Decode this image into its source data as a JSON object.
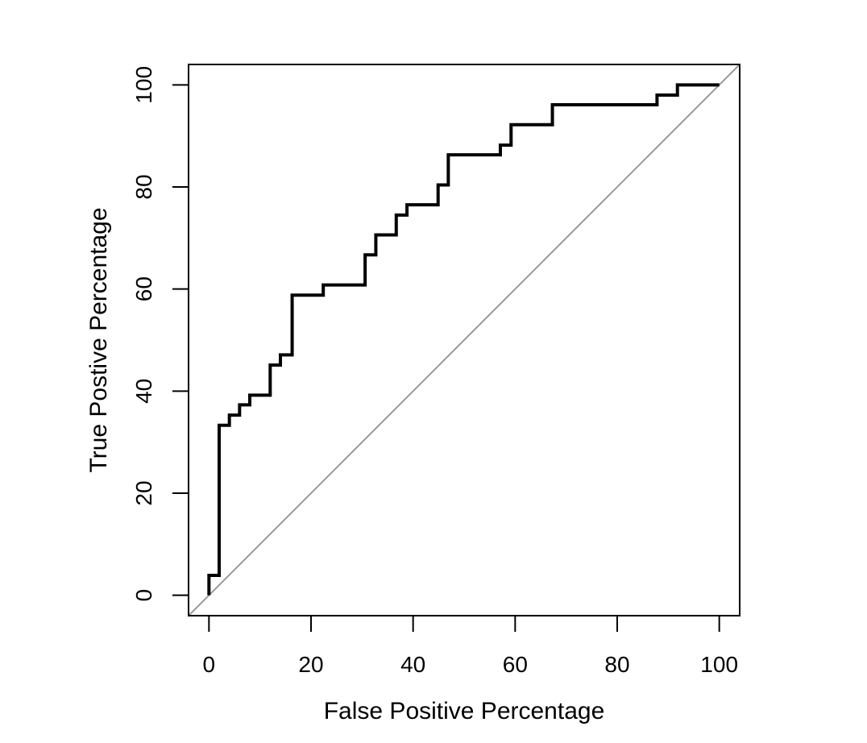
{
  "chart_data": {
    "type": "line",
    "title": "",
    "xlabel": "False Positive Percentage",
    "ylabel": "True Postive Percentage",
    "xlim": [
      -4,
      104
    ],
    "ylim": [
      -4,
      104
    ],
    "xticks": [
      0,
      20,
      40,
      60,
      80,
      100
    ],
    "yticks": [
      0,
      20,
      40,
      60,
      80,
      100
    ],
    "xtick_labels": [
      "0",
      "20",
      "40",
      "60",
      "80",
      "100"
    ],
    "ytick_labels": [
      "0",
      "20",
      "40",
      "60",
      "80",
      "100"
    ],
    "grid": false,
    "legend": "none",
    "series": [
      {
        "style": "step",
        "color": "#000000",
        "x": [
          0,
          0,
          2,
          2,
          4,
          4,
          6,
          6,
          8,
          8,
          12,
          12,
          14,
          14,
          16.3,
          16.3,
          22.4,
          22.4,
          30.6,
          30.6,
          32.7,
          32.7,
          36.7,
          36.7,
          38.8,
          38.8,
          44.9,
          44.9,
          46.9,
          46.9,
          57.1,
          57.1,
          59.2,
          59.2,
          67.3,
          67.3,
          87.8,
          87.8,
          91.8,
          91.8,
          100
        ],
        "y": [
          0,
          3.9,
          3.9,
          33.3,
          33.3,
          35.3,
          35.3,
          37.3,
          37.3,
          39.2,
          39.2,
          45.1,
          45.1,
          47.1,
          47.1,
          58.8,
          58.8,
          60.8,
          60.8,
          66.7,
          66.7,
          70.6,
          70.6,
          74.5,
          74.5,
          76.5,
          76.5,
          80.4,
          80.4,
          86.3,
          86.3,
          88.2,
          88.2,
          92.2,
          92.2,
          96.1,
          96.1,
          98.0,
          98.0,
          100,
          100
        ]
      }
    ],
    "reference_line": {
      "x": [
        -4,
        104
      ],
      "y": [
        -4,
        104
      ],
      "color": "#999999"
    }
  }
}
